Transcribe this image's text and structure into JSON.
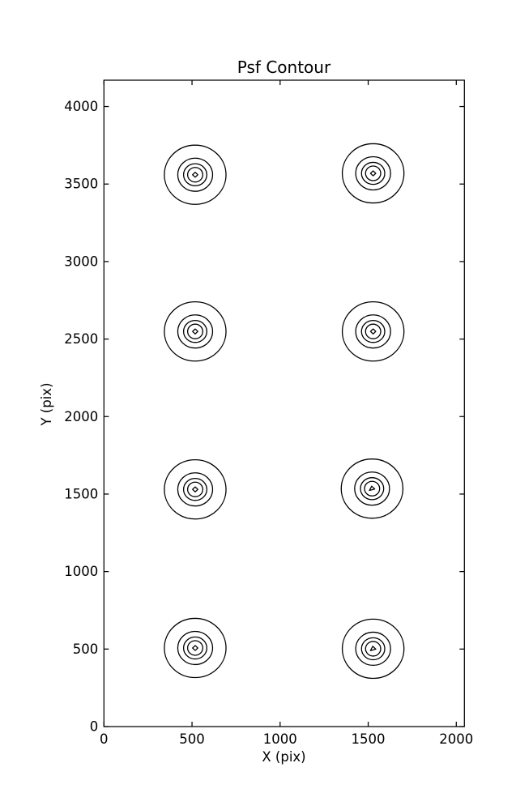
{
  "figure": {
    "background": "#ffffff",
    "line_color": "#000000"
  },
  "chart_data": {
    "type": "contour",
    "title": "Psf Contour",
    "xlabel": "X (pix)",
    "ylabel": "Y (pix)",
    "xlim": [
      0,
      2046
    ],
    "ylim": [
      0,
      4170
    ],
    "xticks": [
      0,
      500,
      1000,
      1500,
      2000
    ],
    "yticks": [
      0,
      500,
      1000,
      1500,
      2000,
      2500,
      3000,
      3500,
      4000
    ],
    "grid": false,
    "legend": "none",
    "contour_line_color": "#000000",
    "levels_per_psf": 5,
    "ring_rx": [
      175,
      99,
      66,
      43,
      15
    ],
    "ring_ry": [
      191,
      107,
      71,
      47,
      16
    ],
    "psf_centers": [
      {
        "x": 518,
        "y": 3560,
        "core": "diamond"
      },
      {
        "x": 1528,
        "y": 3569,
        "core": "diamond"
      },
      {
        "x": 518,
        "y": 2549,
        "core": "diamond"
      },
      {
        "x": 1528,
        "y": 2549,
        "core": "diamond"
      },
      {
        "x": 518,
        "y": 1530,
        "core": "diamond"
      },
      {
        "x": 1522,
        "y": 1535,
        "core": "triangle"
      },
      {
        "x": 518,
        "y": 507,
        "core": "diamond"
      },
      {
        "x": 1528,
        "y": 502,
        "core": "triangle"
      }
    ]
  }
}
